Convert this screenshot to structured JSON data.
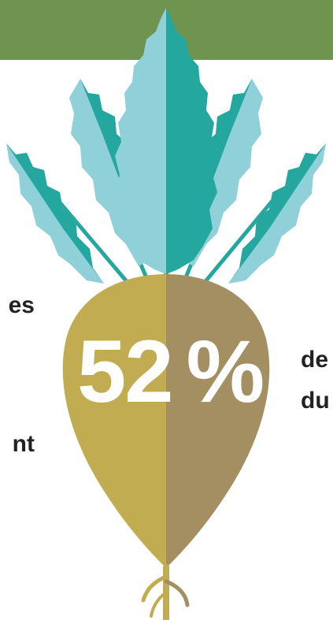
{
  "left_text": {
    "line1": "es",
    "line2": "nt"
  },
  "right_text": {
    "line1": "de",
    "line2": "du"
  },
  "stat": {
    "number": "52",
    "unit": "%"
  },
  "colors": {
    "banner": "#6e9450",
    "leaf_light": "#8fd0d9",
    "leaf_dark": "#24a79e",
    "root_left": "#c2ac52",
    "root_right": "#a48f62",
    "text": "#222222"
  },
  "icons": [
    "beet-root-icon"
  ]
}
